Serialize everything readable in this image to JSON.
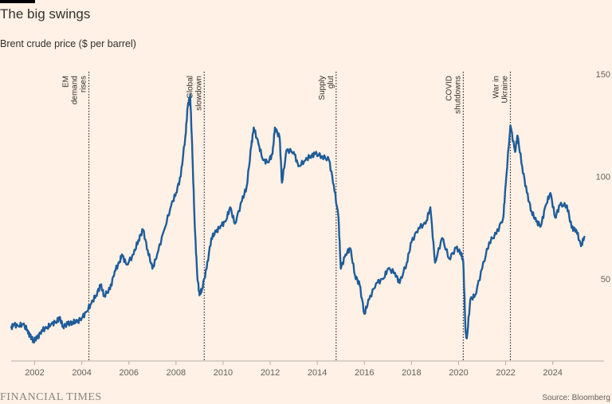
{
  "header": {
    "title": "The big swings",
    "subtitle": "Brent crude price ($ per barrel)"
  },
  "footer": {
    "logo": "FINANCIAL TIMES",
    "source": "Source: Bloomberg"
  },
  "colors": {
    "background": "#fff1e5",
    "line": "#1f5c99",
    "text": "#33302e"
  },
  "chart_data": {
    "type": "line",
    "title": "The big swings",
    "subtitle": "Brent crude price ($ per barrel)",
    "xlim": [
      2001.0,
      2025.5
    ],
    "ylim": [
      10,
      150
    ],
    "yticks": [
      50,
      100,
      150
    ],
    "xticks": [
      2002,
      2004,
      2006,
      2008,
      2010,
      2012,
      2014,
      2016,
      2018,
      2020,
      2022,
      2024
    ],
    "y_axis_side": "right",
    "grid": false,
    "series": [
      {
        "x": [
          2001.0,
          2001.1,
          2001.3,
          2001.5,
          2001.7,
          2001.8,
          2001.95,
          2002.1,
          2002.3,
          2002.5,
          2002.7,
          2002.9,
          2003.05,
          2003.2,
          2003.4,
          2003.6,
          2003.8,
          2004.0,
          2004.2,
          2004.4,
          2004.6,
          2004.8,
          2004.95,
          2005.2,
          2005.4,
          2005.6,
          2005.7,
          2005.9,
          2006.2,
          2006.4,
          2006.6,
          2006.8,
          2007.0,
          2007.2,
          2007.5,
          2007.8,
          2008.0,
          2008.2,
          2008.4,
          2008.5,
          2008.6,
          2008.7,
          2008.8,
          2008.9,
          2009.0,
          2009.1,
          2009.3,
          2009.5,
          2009.7,
          2009.9,
          2010.1,
          2010.3,
          2010.5,
          2010.8,
          2011.0,
          2011.2,
          2011.3,
          2011.5,
          2011.7,
          2011.9,
          2012.1,
          2012.2,
          2012.4,
          2012.5,
          2012.7,
          2013.0,
          2013.2,
          2013.5,
          2013.7,
          2013.9,
          2014.2,
          2014.5,
          2014.7,
          2014.9,
          2015.0,
          2015.2,
          2015.4,
          2015.6,
          2015.8,
          2016.0,
          2016.2,
          2016.5,
          2016.8,
          2017.0,
          2017.3,
          2017.5,
          2017.8,
          2018.0,
          2018.3,
          2018.6,
          2018.8,
          2019.0,
          2019.3,
          2019.6,
          2019.9,
          2020.1,
          2020.2,
          2020.3,
          2020.35,
          2020.5,
          2020.7,
          2021.0,
          2021.3,
          2021.6,
          2021.9,
          2022.0,
          2022.2,
          2022.4,
          2022.5,
          2022.7,
          2022.9,
          2023.1,
          2023.3,
          2023.5,
          2023.7,
          2023.9,
          2024.1,
          2024.3,
          2024.6,
          2024.8,
          2025.0,
          2025.2,
          2025.35
        ],
        "y": [
          26,
          28,
          27,
          28,
          25,
          22,
          20,
          21,
          25,
          26,
          28,
          29,
          31,
          27,
          28,
          29,
          29,
          31,
          34,
          38,
          42,
          47,
          42,
          45,
          54,
          58,
          62,
          57,
          62,
          69,
          74,
          64,
          55,
          62,
          74,
          86,
          92,
          100,
          120,
          134,
          140,
          110,
          75,
          52,
          42,
          45,
          55,
          70,
          73,
          76,
          78,
          85,
          77,
          88,
          95,
          115,
          124,
          116,
          108,
          107,
          111,
          124,
          119,
          97,
          113,
          112,
          105,
          108,
          110,
          111,
          110,
          108,
          96,
          80,
          55,
          62,
          65,
          52,
          47,
          33,
          40,
          48,
          50,
          55,
          53,
          48,
          58,
          68,
          75,
          77,
          85,
          58,
          70,
          60,
          65,
          63,
          58,
          24,
          21,
          40,
          42,
          55,
          68,
          72,
          80,
          96,
          125,
          112,
          120,
          105,
          92,
          83,
          78,
          76,
          86,
          92,
          80,
          86,
          86,
          75,
          74,
          66,
          71
        ]
      }
    ],
    "annotations": [
      {
        "x": 2004.3,
        "lines": [
          "EM",
          "demand",
          "rises"
        ]
      },
      {
        "x": 2009.2,
        "lines": [
          "Global",
          "slowdown"
        ]
      },
      {
        "x": 2014.8,
        "lines": [
          "Supply",
          "glut"
        ]
      },
      {
        "x": 2020.2,
        "lines": [
          "COVID",
          "shutdowns"
        ]
      },
      {
        "x": 2022.2,
        "lines": [
          "War in",
          "Ukraine"
        ]
      }
    ]
  }
}
